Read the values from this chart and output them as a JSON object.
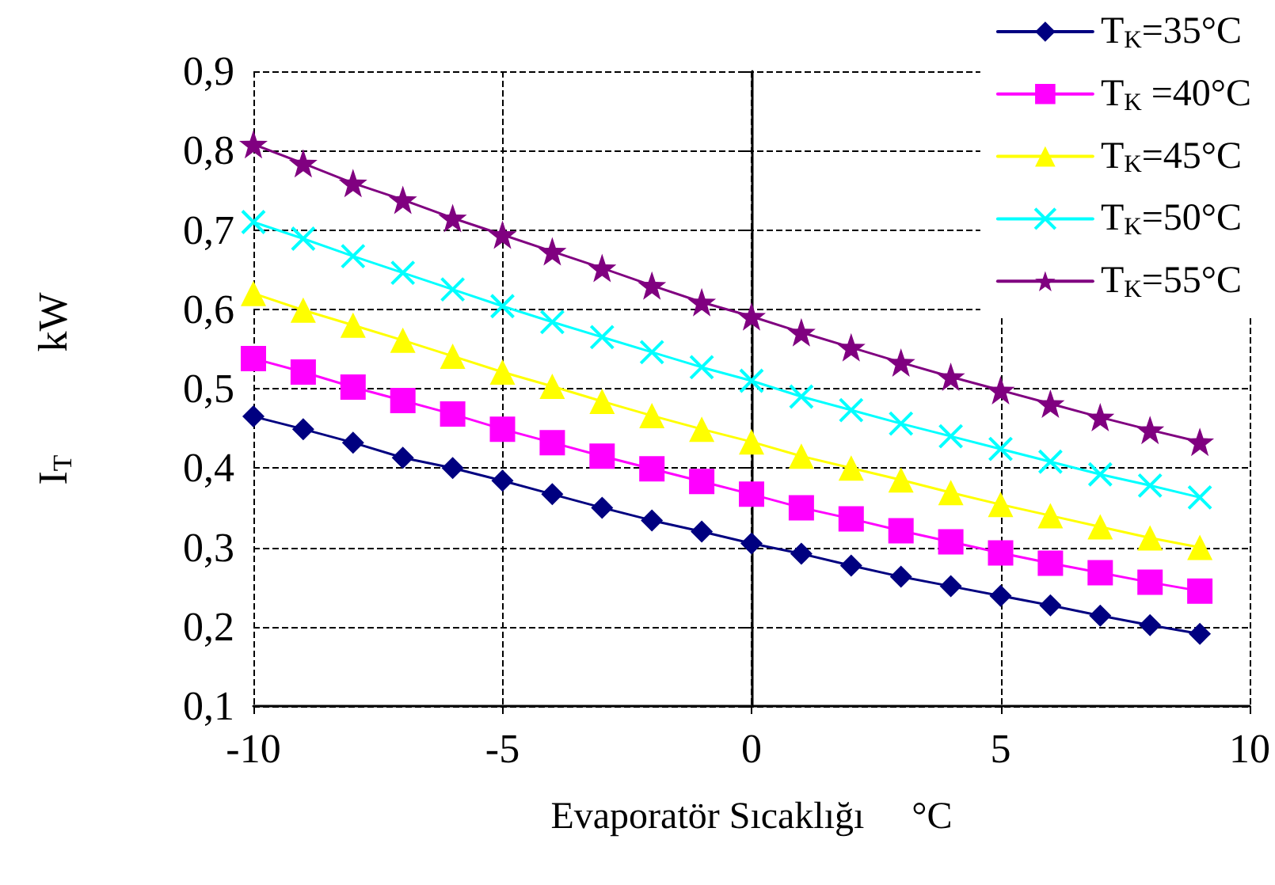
{
  "chart_data": {
    "type": "line",
    "xlabel": "Evaporatör Sıcaklığı     °C",
    "ylabel": "I$_{T}$          kW",
    "x": [
      -10,
      -9,
      -8,
      -7,
      -6,
      -5,
      -4,
      -3,
      -2,
      -1,
      0,
      1,
      2,
      3,
      4,
      5,
      6,
      7,
      8,
      9
    ],
    "series": [
      {
        "name": "T$_{K}$=35°C",
        "color": "#000080",
        "marker": "diamond",
        "values": [
          0.465,
          0.449,
          0.432,
          0.413,
          0.4,
          0.384,
          0.367,
          0.35,
          0.334,
          0.32,
          0.305,
          0.292,
          0.277,
          0.263,
          0.251,
          0.239,
          0.227,
          0.214,
          0.202,
          0.191
        ]
      },
      {
        "name": "T$_{K}$ =40°C",
        "color": "#ff00ff",
        "marker": "square",
        "values": [
          0.538,
          0.521,
          0.502,
          0.485,
          0.468,
          0.449,
          0.432,
          0.415,
          0.399,
          0.383,
          0.367,
          0.35,
          0.336,
          0.321,
          0.307,
          0.293,
          0.28,
          0.268,
          0.256,
          0.245
        ]
      },
      {
        "name": "T$_{K}$=45°C",
        "color": "#ffff00",
        "marker": "triangle",
        "values": [
          0.62,
          0.599,
          0.58,
          0.561,
          0.541,
          0.521,
          0.503,
          0.484,
          0.466,
          0.449,
          0.433,
          0.415,
          0.4,
          0.385,
          0.369,
          0.354,
          0.34,
          0.326,
          0.312,
          0.3
        ]
      },
      {
        "name": "T$_{K}$=50°C",
        "color": "#00ffff",
        "marker": "cross",
        "values": [
          0.71,
          0.689,
          0.667,
          0.646,
          0.625,
          0.604,
          0.584,
          0.565,
          0.546,
          0.527,
          0.51,
          0.49,
          0.473,
          0.456,
          0.44,
          0.424,
          0.408,
          0.392,
          0.378,
          0.363
        ]
      },
      {
        "name": "T$_{K}$=55°C",
        "color": "#800080",
        "marker": "star",
        "values": [
          0.808,
          0.784,
          0.759,
          0.738,
          0.715,
          0.694,
          0.673,
          0.652,
          0.63,
          0.609,
          0.591,
          0.571,
          0.552,
          0.533,
          0.515,
          0.498,
          0.481,
          0.464,
          0.448,
          0.433
        ]
      }
    ],
    "xlim": [
      -10,
      10
    ],
    "xticks": [
      -10,
      -5,
      0,
      5,
      10
    ],
    "ylim": [
      0.1,
      0.9
    ],
    "yticks": [
      {
        "value": 0.1,
        "label": "0,1"
      },
      {
        "value": 0.2,
        "label": "0,2"
      },
      {
        "value": 0.3,
        "label": "0,3"
      },
      {
        "value": 0.4,
        "label": "0,4"
      },
      {
        "value": 0.5,
        "label": "0,5"
      },
      {
        "value": 0.6,
        "label": "0,6"
      },
      {
        "value": 0.7,
        "label": "0,7"
      },
      {
        "value": 0.8,
        "label": "0,8"
      },
      {
        "value": 0.9,
        "label": "0,9"
      }
    ],
    "grid": true,
    "legend": "top right",
    "line_style": "solid"
  }
}
